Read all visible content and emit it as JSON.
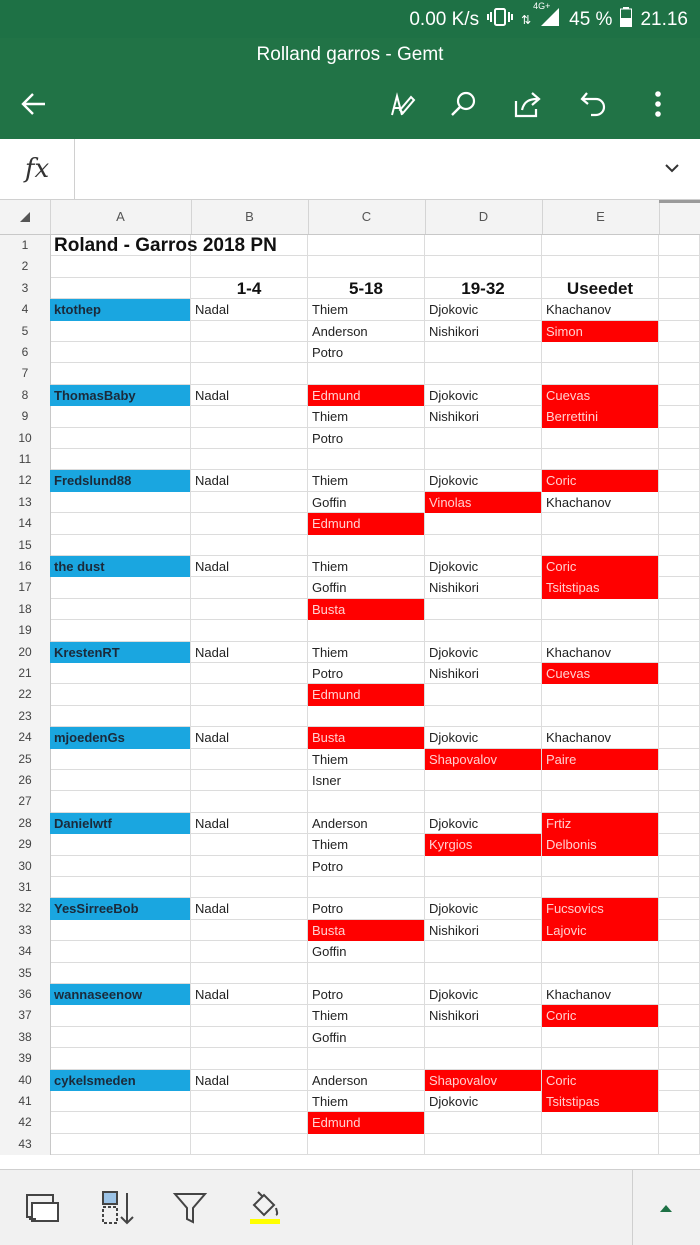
{
  "status_bar": {
    "speed": "0.00 K/s",
    "network": "4G+",
    "battery": "45 %",
    "time": "21.16"
  },
  "app": {
    "title": "Rolland garros - Gemt"
  },
  "appbar_icons": [
    "back-arrow-icon",
    "draw-pen-icon",
    "search-icon",
    "share-icon",
    "undo-icon",
    "more-vert-icon"
  ],
  "formula_bar": {
    "fx": "fx",
    "value": ""
  },
  "columns": [
    "A",
    "B",
    "C",
    "D",
    "E"
  ],
  "colors": {
    "header_green": "#217346",
    "name_blue": "#1aa6e0",
    "miss_red": "#ff0000"
  },
  "sheet": {
    "title": "Roland - Garros 2018 PN",
    "headers": {
      "b": "1-4",
      "c": "5-18",
      "d": "19-32",
      "e": "Useedet"
    },
    "rows": [
      {
        "n": "1"
      },
      {
        "n": "2"
      },
      {
        "n": "3"
      },
      {
        "n": "4",
        "a": "ktothep",
        "b": "Nadal",
        "c": "Thiem",
        "d": "Djokovic",
        "e": "Khachanov"
      },
      {
        "n": "5",
        "c": "Anderson",
        "d": "Nishikori",
        "e": "Simon",
        "eR": true
      },
      {
        "n": "6",
        "c": "Potro"
      },
      {
        "n": "7"
      },
      {
        "n": "8",
        "a": "ThomasBaby",
        "b": "Nadal",
        "c": "Edmund",
        "cR": true,
        "d": "Djokovic",
        "e": "Cuevas",
        "eR": true
      },
      {
        "n": "9",
        "c": "Thiem",
        "d": "Nishikori",
        "e": "Berrettini",
        "eR": true
      },
      {
        "n": "10",
        "c": "Potro"
      },
      {
        "n": "11"
      },
      {
        "n": "12",
        "a": "Fredslund88",
        "b": "Nadal",
        "c": "Thiem",
        "d": "Djokovic",
        "e": "Coric",
        "eR": true
      },
      {
        "n": "13",
        "c": "Goffin",
        "d": "Vinolas",
        "dR": true,
        "e": "Khachanov"
      },
      {
        "n": "14",
        "c": "Edmund",
        "cR": true
      },
      {
        "n": "15"
      },
      {
        "n": "16",
        "a": "the dust",
        "b": "Nadal",
        "c": "Thiem",
        "d": "Djokovic",
        "e": "Coric",
        "eR": true
      },
      {
        "n": "17",
        "c": "Goffin",
        "d": "Nishikori",
        "e": "Tsitstipas",
        "eR": true
      },
      {
        "n": "18",
        "c": "Busta",
        "cR": true
      },
      {
        "n": "19"
      },
      {
        "n": "20",
        "a": "KrestenRT",
        "b": "Nadal",
        "c": "Thiem",
        "d": "Djokovic",
        "e": "Khachanov"
      },
      {
        "n": "21",
        "c": "Potro",
        "d": "Nishikori",
        "e": "Cuevas",
        "eR": true
      },
      {
        "n": "22",
        "c": "Edmund",
        "cR": true
      },
      {
        "n": "23"
      },
      {
        "n": "24",
        "a": "mjoedenGs",
        "b": "Nadal",
        "c": "Busta",
        "cR": true,
        "d": "Djokovic",
        "e": "Khachanov"
      },
      {
        "n": "25",
        "c": "Thiem",
        "d": "Shapovalov",
        "dR": true,
        "e": "Paire",
        "eR": true
      },
      {
        "n": "26",
        "c": "Isner"
      },
      {
        "n": "27"
      },
      {
        "n": "28",
        "a": "Danielwtf",
        "b": "Nadal",
        "c": "Anderson",
        "d": "Djokovic",
        "e": "Frtiz",
        "eR": true
      },
      {
        "n": "29",
        "c": "Thiem",
        "d": "Kyrgios",
        "dR": true,
        "e": "Delbonis",
        "eR": true
      },
      {
        "n": "30",
        "c": "Potro"
      },
      {
        "n": "31"
      },
      {
        "n": "32",
        "a": "YesSirreeBob",
        "b": "Nadal",
        "c": "Potro",
        "d": "Djokovic",
        "e": "Fucsovics",
        "eR": true
      },
      {
        "n": "33",
        "c": "Busta",
        "cR": true,
        "d": "Nishikori",
        "e": "Lajovic",
        "eR": true
      },
      {
        "n": "34",
        "c": "Goffin"
      },
      {
        "n": "35"
      },
      {
        "n": "36",
        "a": "wannaseenow",
        "b": "Nadal",
        "c": "Potro",
        "d": "Djokovic",
        "e": "Khachanov"
      },
      {
        "n": "37",
        "c": "Thiem",
        "d": "Nishikori",
        "e": "Coric",
        "eR": true
      },
      {
        "n": "38",
        "c": "Goffin"
      },
      {
        "n": "39"
      },
      {
        "n": "40",
        "a": "cykelsmeden",
        "b": "Nadal",
        "c": "Anderson",
        "d": "Shapovalov",
        "dR": true,
        "e": "Coric",
        "eR": true
      },
      {
        "n": "41",
        "c": "Thiem",
        "d": "Djokovic",
        "e": "Tsitstipas",
        "eR": true
      },
      {
        "n": "42",
        "c": "Edmund",
        "cR": true
      },
      {
        "n": "43"
      }
    ]
  },
  "bottom_toolbar": [
    "format-cells-icon",
    "sort-icon",
    "filter-icon",
    "fill-color-icon",
    "expand-up-icon"
  ]
}
